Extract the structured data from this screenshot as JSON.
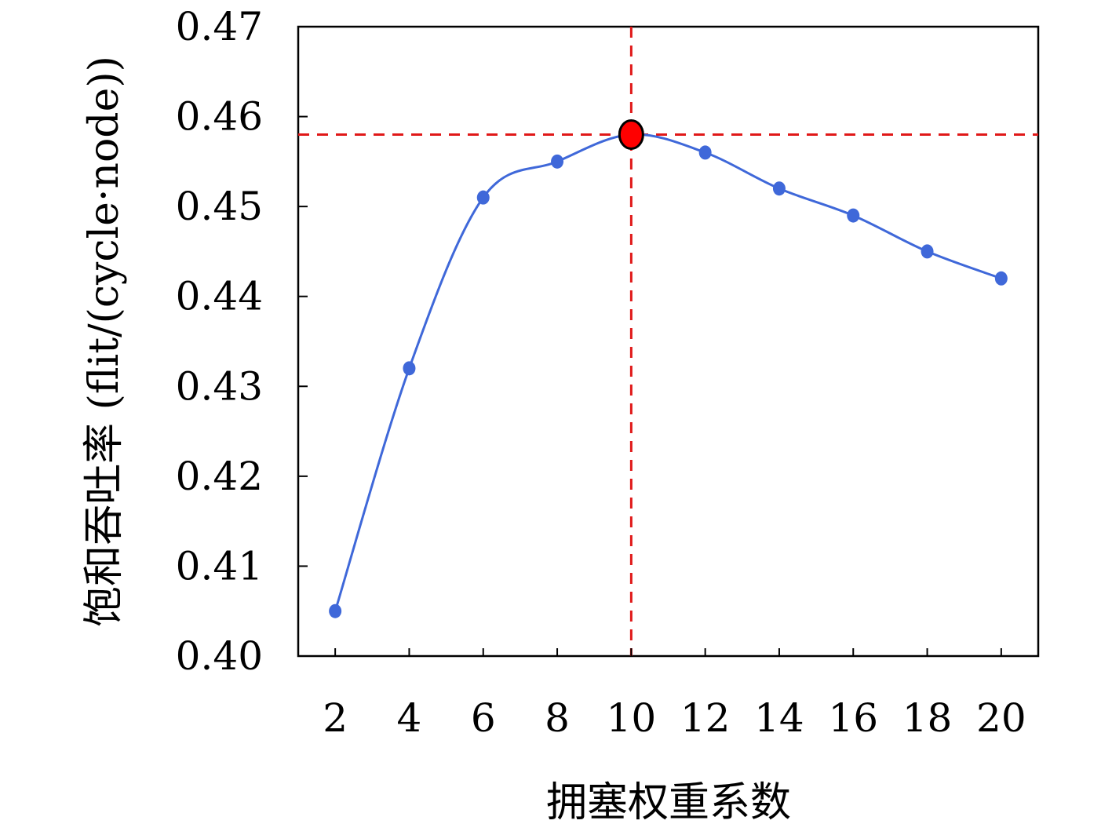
{
  "chart_data": {
    "type": "line",
    "title": "",
    "xlabel": "拥塞权重系数",
    "ylabel": "饱和吞吐率 (flit/(cycle·node))",
    "x": [
      2,
      4,
      6,
      8,
      10,
      12,
      14,
      16,
      18,
      20
    ],
    "x_tick_labels": [
      "2",
      "4",
      "6",
      "8",
      "10",
      "12",
      "14",
      "16",
      "18",
      "20"
    ],
    "y_tick_values": [
      0.4,
      0.41,
      0.42,
      0.43,
      0.44,
      0.45,
      0.46,
      0.47
    ],
    "y_tick_labels": [
      "0.40",
      "0.41",
      "0.42",
      "0.43",
      "0.44",
      "0.45",
      "0.46",
      "0.47"
    ],
    "ylim": [
      0.4,
      0.47
    ],
    "xlim": [
      1,
      21
    ],
    "grid": false,
    "series": [
      {
        "values": [
          0.405,
          0.432,
          0.451,
          0.455,
          0.458,
          0.456,
          0.452,
          0.449,
          0.445,
          0.442
        ],
        "color": "#3f68d9",
        "smooth": true
      }
    ],
    "highlight": {
      "x": 10,
      "y": 0.458,
      "color": "#ff0000",
      "guide_color": "#e01818",
      "guide_style": "dashed"
    }
  }
}
